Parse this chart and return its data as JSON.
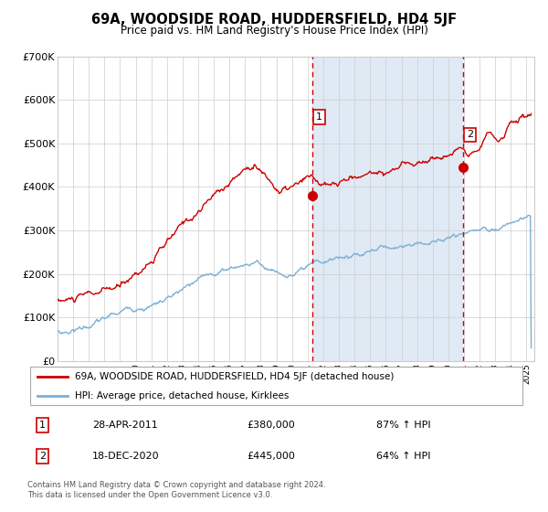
{
  "title": "69A, WOODSIDE ROAD, HUDDERSFIELD, HD4 5JF",
  "subtitle": "Price paid vs. HM Land Registry's House Price Index (HPI)",
  "legend_line1": "69A, WOODSIDE ROAD, HUDDERSFIELD, HD4 5JF (detached house)",
  "legend_line2": "HPI: Average price, detached house, Kirklees",
  "annotation1_date": "28-APR-2011",
  "annotation1_price": "£380,000",
  "annotation1_pct": "87% ↑ HPI",
  "annotation2_date": "18-DEC-2020",
  "annotation2_price": "£445,000",
  "annotation2_pct": "64% ↑ HPI",
  "footnote": "Contains HM Land Registry data © Crown copyright and database right 2024.\nThis data is licensed under the Open Government Licence v3.0.",
  "red_color": "#cc0000",
  "blue_color": "#7aafd4",
  "shade_color": "#e0eaf5",
  "plot_bg": "#ffffff",
  "grid_color": "#cccccc",
  "ylim": [
    0,
    700000
  ],
  "yticks": [
    0,
    100000,
    200000,
    300000,
    400000,
    500000,
    600000,
    700000
  ],
  "ytick_labels": [
    "£0",
    "£100K",
    "£200K",
    "£300K",
    "£400K",
    "£500K",
    "£600K",
    "£700K"
  ],
  "sale1_x": 2011.32,
  "sale1_y": 380000,
  "sale2_x": 2020.96,
  "sale2_y": 445000,
  "vline1_x": 2011.32,
  "vline2_x": 2020.96,
  "shade_x1": 2011.32,
  "shade_x2": 2020.96,
  "xmin": 1995,
  "xmax": 2025.5
}
